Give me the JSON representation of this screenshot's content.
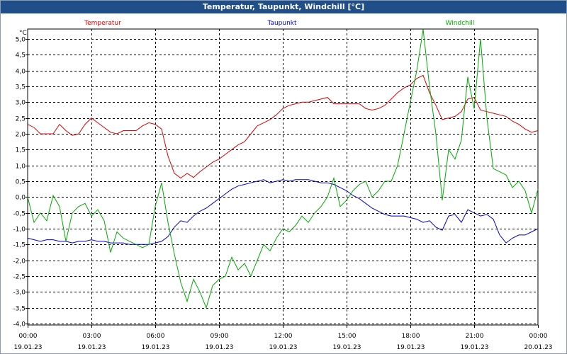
{
  "window": {
    "title": "Temperatur, Taupunkt, Windchill [°C]"
  },
  "colors": {
    "temperature": "#dd0000",
    "dewpoint": "#0000cc",
    "windchill": "#00aa00",
    "grid": "#000000",
    "titlebar": "#1f4e88"
  },
  "chart_data": {
    "type": "line",
    "title": "Temperatur, Taupunkt, Windchill [°C]",
    "ylabel": "°C",
    "ylim": [
      -4.0,
      5.5
    ],
    "xlim": [
      0,
      24
    ],
    "yticks": [
      {
        "value": 5.0,
        "label": "5,0"
      },
      {
        "value": 4.5,
        "label": "4,5"
      },
      {
        "value": 4.0,
        "label": "4,0"
      },
      {
        "value": 3.5,
        "label": "3,5"
      },
      {
        "value": 3.0,
        "label": "3,0"
      },
      {
        "value": 2.5,
        "label": "2,5"
      },
      {
        "value": 2.0,
        "label": "2,0"
      },
      {
        "value": 1.5,
        "label": "1,5"
      },
      {
        "value": 1.0,
        "label": "1,0"
      },
      {
        "value": 0.5,
        "label": "0,5"
      },
      {
        "value": 0.0,
        "label": "0,0"
      },
      {
        "value": -0.5,
        "label": "-0,5"
      },
      {
        "value": -1.0,
        "label": "-1,0"
      },
      {
        "value": -1.5,
        "label": "-1,5"
      },
      {
        "value": -2.0,
        "label": "-2,0"
      },
      {
        "value": -2.5,
        "label": "-2,5"
      },
      {
        "value": -3.0,
        "label": "-3,0"
      },
      {
        "value": -3.5,
        "label": "-3,5"
      },
      {
        "value": -4.0,
        "label": "-4,0"
      }
    ],
    "xticks": [
      {
        "value": 0,
        "time": "00:00",
        "date": "19.01.23"
      },
      {
        "value": 3,
        "time": "03:00",
        "date": "19.01.23"
      },
      {
        "value": 6,
        "time": "06:00",
        "date": "19.01.23"
      },
      {
        "value": 9,
        "time": "09:00",
        "date": "19.01.23"
      },
      {
        "value": 12,
        "time": "12:00",
        "date": "19.01.23"
      },
      {
        "value": 15,
        "time": "15:00",
        "date": "19.01.23"
      },
      {
        "value": 18,
        "time": "18:00",
        "date": "19.01.23"
      },
      {
        "value": 21,
        "time": "21:00",
        "date": "19.01.23"
      },
      {
        "value": 24,
        "time": "00:00",
        "date": "20.01.23"
      }
    ],
    "series": [
      {
        "name": "Temperatur",
        "key": "temperature",
        "x": [
          0,
          0.3,
          0.6,
          0.9,
          1.2,
          1.5,
          1.8,
          2.1,
          2.4,
          2.7,
          3.0,
          3.3,
          3.6,
          3.9,
          4.2,
          4.5,
          4.8,
          5.1,
          5.4,
          5.7,
          6.0,
          6.3,
          6.6,
          6.9,
          7.2,
          7.5,
          7.8,
          8.1,
          8.4,
          8.7,
          9.0,
          9.3,
          9.6,
          9.9,
          10.2,
          10.5,
          10.8,
          11.1,
          11.4,
          11.7,
          12.0,
          12.3,
          12.6,
          12.9,
          13.2,
          13.5,
          13.8,
          14.1,
          14.4,
          14.7,
          15.0,
          15.3,
          15.6,
          15.9,
          16.2,
          16.5,
          16.8,
          17.1,
          17.4,
          17.7,
          18.0,
          18.3,
          18.6,
          18.9,
          19.2,
          19.5,
          19.8,
          20.1,
          20.4,
          20.7,
          21.0,
          21.3,
          21.6,
          21.9,
          22.2,
          22.5,
          22.8,
          23.1,
          23.4,
          23.7,
          24.0
        ],
        "y": [
          2.3,
          2.2,
          2.0,
          2.0,
          2.0,
          2.3,
          2.1,
          1.95,
          2.0,
          2.3,
          2.5,
          2.35,
          2.2,
          2.05,
          2.0,
          2.1,
          2.1,
          2.1,
          2.25,
          2.35,
          2.3,
          2.15,
          1.3,
          0.75,
          0.6,
          0.75,
          0.62,
          0.8,
          0.95,
          1.1,
          1.2,
          1.35,
          1.5,
          1.65,
          1.75,
          2.0,
          2.25,
          2.35,
          2.45,
          2.6,
          2.8,
          2.9,
          2.95,
          3.0,
          3.0,
          3.05,
          3.1,
          3.15,
          2.95,
          2.95,
          2.95,
          2.95,
          2.95,
          2.8,
          2.75,
          2.8,
          2.9,
          3.1,
          3.3,
          3.45,
          3.55,
          3.75,
          3.85,
          3.3,
          2.9,
          2.45,
          2.5,
          2.55,
          2.7,
          3.1,
          3.15,
          2.75,
          2.7,
          2.65,
          2.6,
          2.55,
          2.4,
          2.3,
          2.15,
          2.05,
          2.1
        ]
      },
      {
        "name": "Taupunkt",
        "key": "dewpoint",
        "x": [
          0,
          0.3,
          0.6,
          0.9,
          1.2,
          1.5,
          1.8,
          2.1,
          2.4,
          2.7,
          3.0,
          3.3,
          3.6,
          3.9,
          4.2,
          4.5,
          4.8,
          5.1,
          5.4,
          5.7,
          6.0,
          6.3,
          6.6,
          6.9,
          7.2,
          7.5,
          7.8,
          8.1,
          8.4,
          8.7,
          9.0,
          9.3,
          9.6,
          9.9,
          10.2,
          10.5,
          10.8,
          11.1,
          11.4,
          11.7,
          12.0,
          12.3,
          12.6,
          12.9,
          13.2,
          13.5,
          13.8,
          14.1,
          14.4,
          14.7,
          15.0,
          15.3,
          15.6,
          15.9,
          16.2,
          16.5,
          16.8,
          17.1,
          17.4,
          17.7,
          18.0,
          18.3,
          18.6,
          18.9,
          19.2,
          19.5,
          19.8,
          20.1,
          20.4,
          20.7,
          21.0,
          21.3,
          21.6,
          21.9,
          22.2,
          22.5,
          22.8,
          23.1,
          23.4,
          23.7,
          24.0
        ],
        "y": [
          -1.3,
          -1.35,
          -1.4,
          -1.35,
          -1.35,
          -1.4,
          -1.4,
          -1.45,
          -1.4,
          -1.4,
          -1.35,
          -1.4,
          -1.4,
          -1.45,
          -1.45,
          -1.45,
          -1.5,
          -1.5,
          -1.5,
          -1.5,
          -1.45,
          -1.4,
          -1.25,
          -0.95,
          -0.75,
          -0.8,
          -0.6,
          -0.45,
          -0.35,
          -0.2,
          -0.05,
          0.1,
          0.25,
          0.35,
          0.4,
          0.45,
          0.5,
          0.55,
          0.45,
          0.5,
          0.55,
          0.5,
          0.55,
          0.55,
          0.55,
          0.5,
          0.45,
          0.45,
          0.4,
          0.3,
          0.2,
          0.05,
          -0.05,
          -0.2,
          -0.35,
          -0.45,
          -0.55,
          -0.6,
          -0.6,
          -0.6,
          -0.65,
          -0.7,
          -0.8,
          -0.75,
          -0.95,
          -1.05,
          -0.6,
          -0.55,
          -0.8,
          -0.4,
          -0.5,
          -0.6,
          -0.55,
          -0.7,
          -1.2,
          -1.45,
          -1.3,
          -1.2,
          -1.2,
          -1.1,
          -1.0
        ]
      },
      {
        "name": "Windchill",
        "key": "windchill",
        "x": [
          0,
          0.3,
          0.6,
          0.9,
          1.2,
          1.5,
          1.8,
          2.1,
          2.4,
          2.7,
          3.0,
          3.3,
          3.6,
          3.9,
          4.2,
          4.5,
          4.8,
          5.1,
          5.4,
          5.7,
          6.0,
          6.3,
          6.6,
          6.9,
          7.2,
          7.5,
          7.8,
          8.1,
          8.4,
          8.7,
          9.0,
          9.3,
          9.6,
          9.9,
          10.2,
          10.5,
          10.8,
          11.1,
          11.4,
          11.7,
          12.0,
          12.3,
          12.6,
          12.9,
          13.2,
          13.5,
          13.8,
          14.1,
          14.4,
          14.7,
          15.0,
          15.3,
          15.6,
          15.9,
          16.2,
          16.5,
          16.8,
          17.1,
          17.4,
          17.7,
          18.0,
          18.3,
          18.6,
          18.9,
          19.2,
          19.5,
          19.8,
          20.1,
          20.4,
          20.7,
          21.0,
          21.3,
          21.6,
          21.9,
          22.2,
          22.5,
          22.8,
          23.1,
          23.4,
          23.7,
          24.0
        ],
        "y": [
          0.0,
          -0.8,
          -0.5,
          -0.75,
          0.05,
          -0.3,
          -1.4,
          -0.5,
          -0.3,
          -0.2,
          -0.6,
          -0.4,
          -0.75,
          -1.75,
          -1.1,
          -1.3,
          -1.4,
          -1.5,
          -1.6,
          -1.5,
          -0.3,
          0.45,
          -0.8,
          -1.8,
          -2.7,
          -3.3,
          -2.6,
          -3.0,
          -3.5,
          -2.8,
          -2.6,
          -2.5,
          -1.9,
          -2.3,
          -2.1,
          -2.5,
          -2.0,
          -1.5,
          -1.7,
          -1.3,
          -1.0,
          -1.1,
          -0.9,
          -0.6,
          -0.8,
          -0.5,
          -0.3,
          0.0,
          0.6,
          -0.3,
          -0.1,
          0.2,
          0.4,
          0.5,
          0.0,
          0.2,
          0.5,
          0.5,
          1.0,
          2.0,
          3.0,
          4.0,
          5.3,
          3.5,
          2.0,
          -0.1,
          1.5,
          1.2,
          1.8,
          3.8,
          2.8,
          5.0,
          2.5,
          0.9,
          0.8,
          0.7,
          0.3,
          0.5,
          0.2,
          -0.5,
          0.25
        ]
      }
    ]
  }
}
